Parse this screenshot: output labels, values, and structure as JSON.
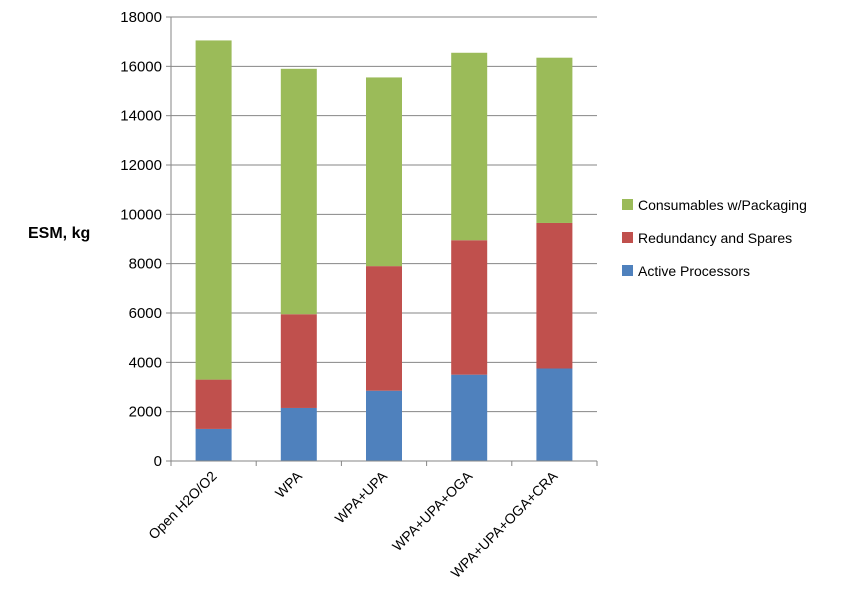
{
  "chart_data": {
    "type": "bar",
    "stacked": true,
    "title": "",
    "xlabel": "",
    "ylabel": "ESM, kg",
    "ylim": [
      0,
      18000
    ],
    "yticks": [
      0,
      2000,
      4000,
      6000,
      8000,
      10000,
      12000,
      14000,
      16000,
      18000
    ],
    "grid": true,
    "legend_position": "right",
    "categories": [
      "Open H2O/O2",
      "WPA",
      "WPA+UPA",
      "WPA+UPA+OGA",
      "WPA+UPA+OGA+CRA"
    ],
    "series": [
      {
        "name": "Active Processors",
        "color": "#4f81bd",
        "values": [
          1300,
          2150,
          2850,
          3500,
          3750
        ]
      },
      {
        "name": "Redundancy and Spares",
        "color": "#c0504d",
        "values": [
          2000,
          3800,
          5050,
          5450,
          5900
        ]
      },
      {
        "name": "Consumables w/Packaging",
        "color": "#9bbb59",
        "values": [
          13750,
          9950,
          7650,
          7600,
          6700
        ]
      }
    ],
    "legend_order": [
      "Consumables w/Packaging",
      "Redundancy and Spares",
      "Active Processors"
    ]
  }
}
